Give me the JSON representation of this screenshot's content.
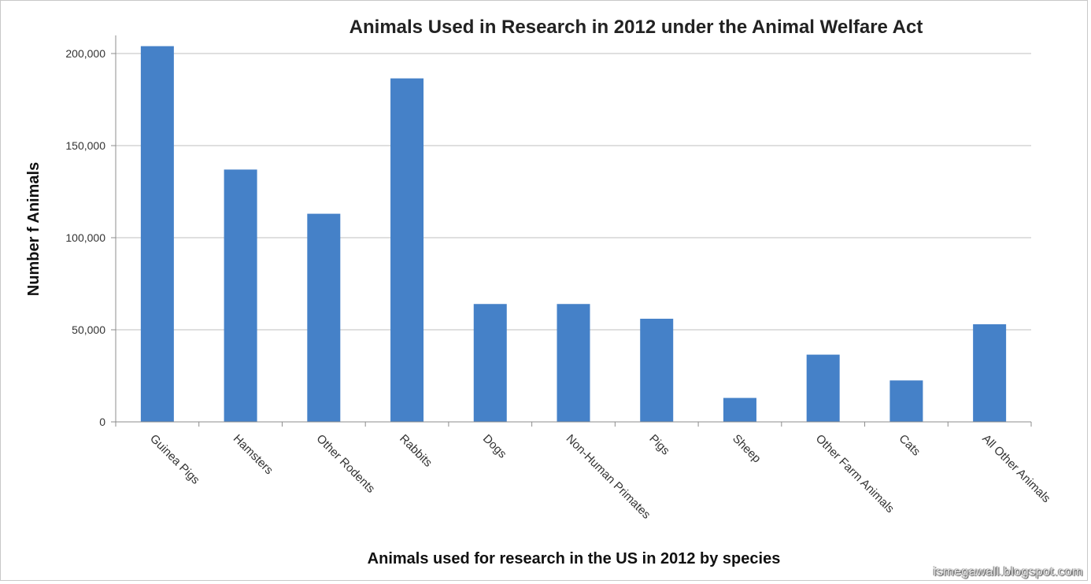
{
  "chart_data": {
    "type": "bar",
    "title": "Animals Used in Research in 2012 under the Animal Welfare Act",
    "xlabel": "Animals used for research in the US in 2012 by species",
    "ylabel": "Number f Animals",
    "categories": [
      "Guinea Pigs",
      "Hamsters",
      "Other Rodents",
      "Rabbits",
      "Dogs",
      "Non-Human Primates",
      "Pigs",
      "Sheep",
      "Other Farm Animals",
      "Cats",
      "All Other Animals"
    ],
    "values": [
      204000,
      137000,
      113000,
      186500,
      64000,
      64000,
      56000,
      13000,
      36500,
      22500,
      53000
    ],
    "y_ticks": [
      "0",
      "50,000",
      "100,000",
      "150,000",
      "200,000"
    ],
    "ylim": [
      0,
      200000
    ],
    "grid": true,
    "legend": "none",
    "bar_color": "#4581c8",
    "grid_color": "#bfbfbf"
  },
  "watermark": "ismegawall.blogspot.com"
}
